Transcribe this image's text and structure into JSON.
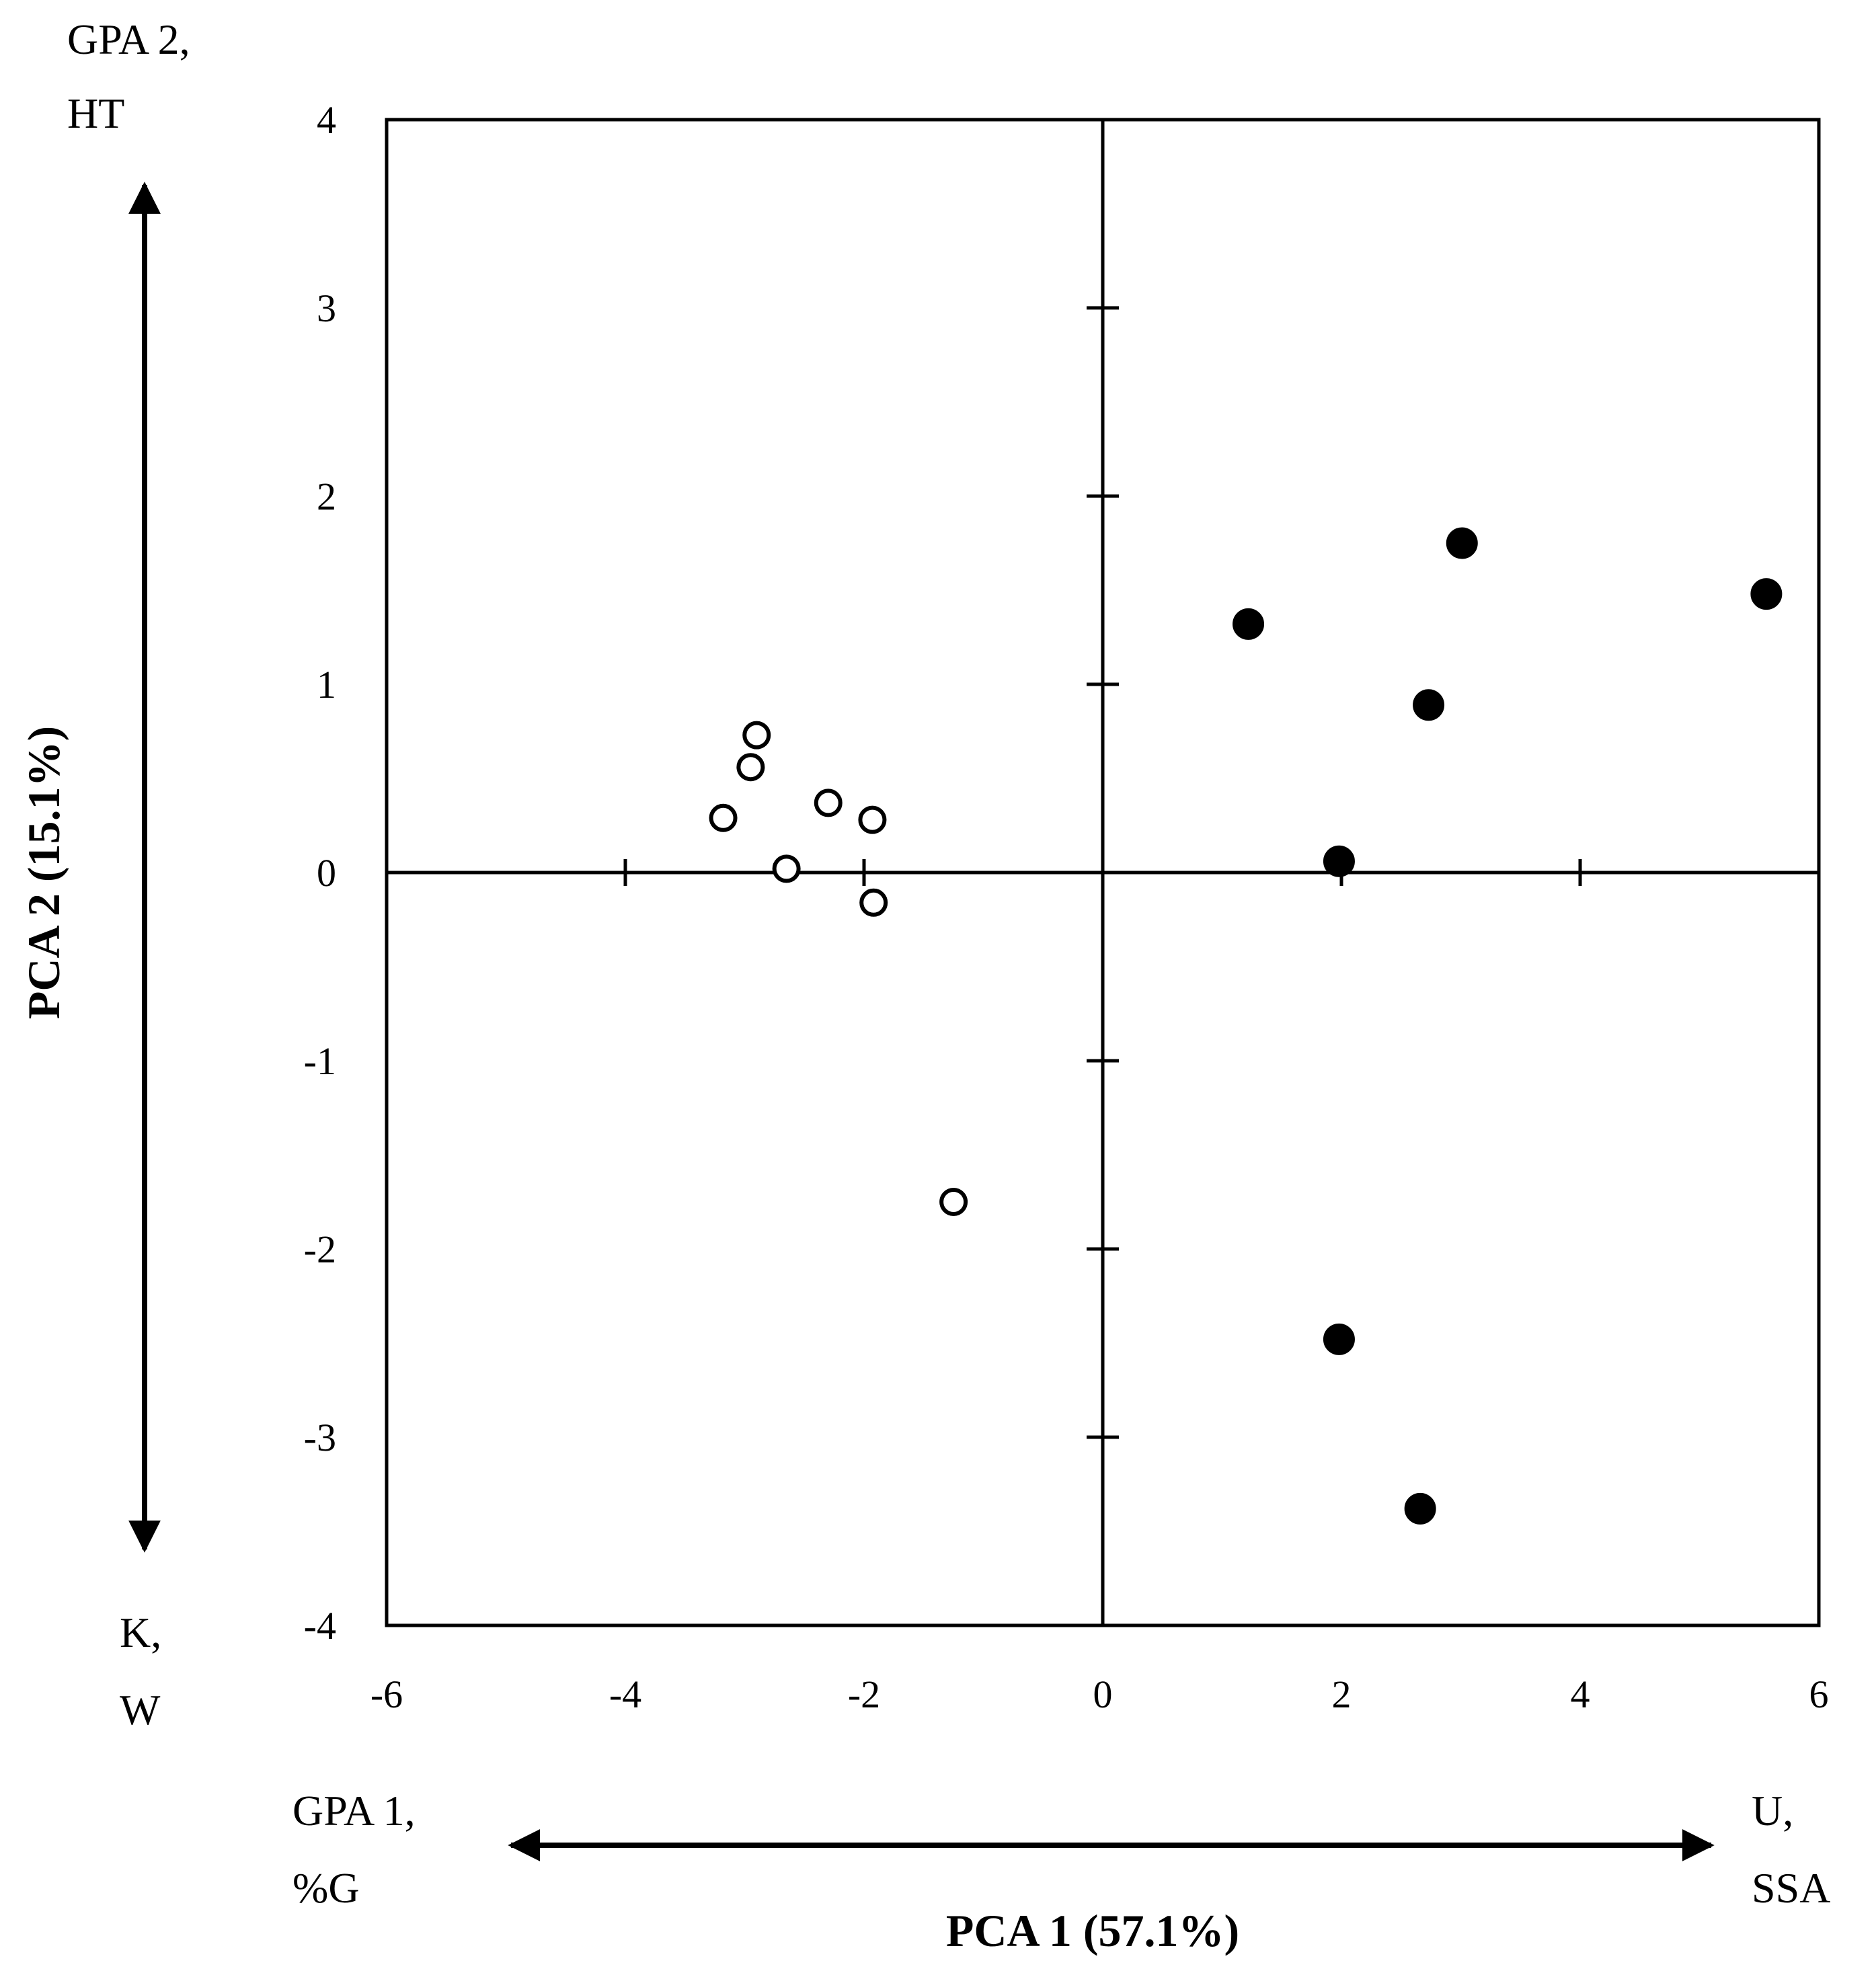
{
  "chart_data": {
    "type": "scatter",
    "title": "",
    "xlabel": "PCA 1 (57.1%)",
    "ylabel": "PCA 2 (15.1%)",
    "xlim": [
      -6,
      6
    ],
    "ylim": [
      -4,
      4
    ],
    "x_ticks": [
      "-6",
      "-4",
      "-2",
      "0",
      "2",
      "4",
      "6"
    ],
    "y_ticks": [
      "4",
      "3",
      "2",
      "1",
      "0",
      "-1",
      "-2",
      "-3",
      "-4"
    ],
    "grid": false,
    "series": [
      {
        "name": "open circles",
        "marker": "open-circle",
        "points": [
          {
            "x": -2.9,
            "y": 0.73
          },
          {
            "x": -2.95,
            "y": 0.56
          },
          {
            "x": -2.3,
            "y": 0.37
          },
          {
            "x": -1.93,
            "y": 0.28
          },
          {
            "x": -3.18,
            "y": 0.29
          },
          {
            "x": -2.65,
            "y": 0.02
          },
          {
            "x": -1.92,
            "y": -0.16
          },
          {
            "x": -1.25,
            "y": -1.75
          }
        ]
      },
      {
        "name": "filled circles",
        "marker": "filled-circle",
        "points": [
          {
            "x": 1.22,
            "y": 1.32
          },
          {
            "x": 3.01,
            "y": 1.75
          },
          {
            "x": 5.56,
            "y": 1.48
          },
          {
            "x": 2.73,
            "y": 0.89
          },
          {
            "x": 1.98,
            "y": 0.06
          },
          {
            "x": 1.98,
            "y": -2.48
          },
          {
            "x": 2.66,
            "y": -3.38
          }
        ]
      }
    ],
    "annotations": {
      "y_top": [
        "GPA 2,",
        "HT"
      ],
      "y_bottom": [
        "K,",
        "W"
      ],
      "x_left": [
        "GPA 1,",
        "%G"
      ],
      "x_right": [
        "U,",
        "SSA"
      ]
    }
  }
}
